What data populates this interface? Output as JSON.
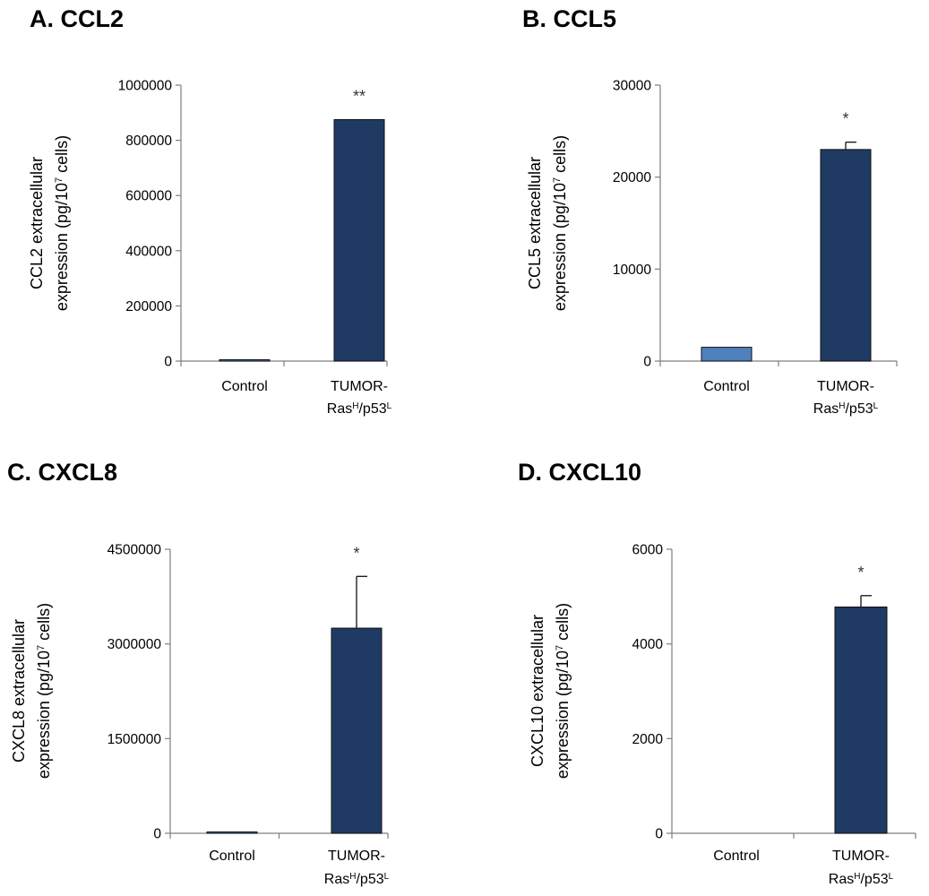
{
  "chart_data": [
    {
      "type": "bar",
      "title": "A. CCL2",
      "ylabel_line1": "CCL2 extracellular",
      "ylabel_line2": "expression (pg/10",
      "ylabel_sup": "7",
      "ylabel_tail": " cells)",
      "ylim": [
        0,
        1000000
      ],
      "yticks": [
        0,
        200000,
        400000,
        600000,
        800000,
        1000000
      ],
      "ytick_labels": [
        "0",
        "200000",
        "400000",
        "600000",
        "800000",
        "1000000"
      ],
      "categories": [
        "Control",
        "TUMOR-RasH/p53L"
      ],
      "values": [
        3000,
        875000
      ],
      "errors": [
        0,
        0
      ],
      "significance": [
        "",
        "**"
      ],
      "bar_colors": [
        "#4f81bd",
        "#1f3b63"
      ]
    },
    {
      "type": "bar",
      "title": "B. CCL5",
      "ylabel_line1": "CCL5 extracellular",
      "ylabel_line2": "expression (pg/10",
      "ylabel_sup": "7",
      "ylabel_tail": " cells)",
      "ylim": [
        0,
        30000
      ],
      "yticks": [
        0,
        10000,
        20000,
        30000
      ],
      "ytick_labels": [
        "0",
        "10000",
        "20000",
        "30000"
      ],
      "categories": [
        "Control",
        "TUMOR-RasH/p53L"
      ],
      "values": [
        1500,
        23000
      ],
      "errors": [
        0,
        800
      ],
      "significance": [
        "",
        "*"
      ],
      "bar_colors": [
        "#4f81bd",
        "#1f3b63"
      ]
    },
    {
      "type": "bar",
      "title": "C. CXCL8",
      "ylabel_line1": "CXCL8 extracellular",
      "ylabel_line2": "expression (pg/10",
      "ylabel_sup": "7",
      "ylabel_tail": " cells)",
      "ylim": [
        0,
        4500000
      ],
      "yticks": [
        0,
        1500000,
        3000000,
        4500000
      ],
      "ytick_labels": [
        "0",
        "1500000",
        "3000000",
        "4500000"
      ],
      "categories": [
        "Control",
        "TUMOR-RasH/p53L"
      ],
      "values": [
        20000,
        3250000
      ],
      "errors": [
        0,
        820000
      ],
      "significance": [
        "",
        "*"
      ],
      "bar_colors": [
        "#4f81bd",
        "#1f3b63"
      ]
    },
    {
      "type": "bar",
      "title": "D. CXCL10",
      "ylabel_line1": "CXCL10 extracellular",
      "ylabel_line2": "expression (pg/10",
      "ylabel_sup": "7",
      "ylabel_tail": " cells)",
      "ylim": [
        0,
        6000
      ],
      "yticks": [
        0,
        2000,
        4000,
        6000
      ],
      "ytick_labels": [
        "0",
        "2000",
        "4000",
        "6000"
      ],
      "categories": [
        "Control",
        "TUMOR-RasH/p53L"
      ],
      "values": [
        0,
        4780
      ],
      "errors": [
        0,
        240
      ],
      "significance": [
        "",
        "*"
      ],
      "bar_colors": [
        "#4f81bd",
        "#1f3b63"
      ]
    }
  ],
  "x_labels": {
    "control": "Control",
    "tumor_line1": "TUMOR-",
    "tumor_ras": "Ras",
    "tumor_h": "H",
    "tumor_p53": "/p53",
    "tumor_l": "L"
  }
}
